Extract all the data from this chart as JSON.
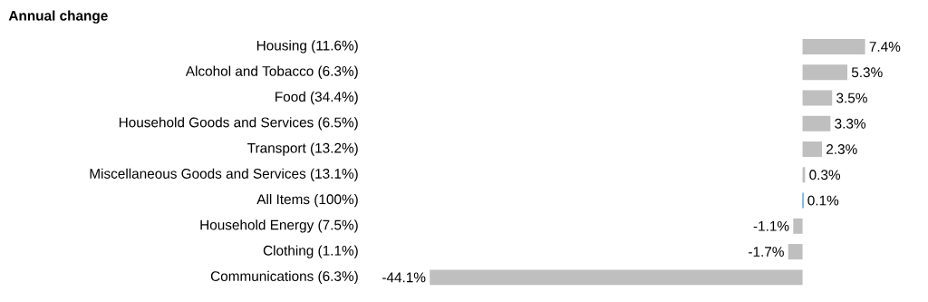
{
  "chart_data": {
    "type": "bar",
    "orientation": "horizontal",
    "title": "Annual change",
    "categories": [
      "Housing (11.6%)",
      "Alcohol and Tobacco (6.3%)",
      "Food (34.4%)",
      "Household Goods and Services (6.5%)",
      "Transport (13.2%)",
      "Miscellaneous Goods and Services (13.1%)",
      "All Items (100%)",
      "Household Energy (7.5%)",
      "Clothing (1.1%)",
      "Communications (6.3%)"
    ],
    "values": [
      7.4,
      5.3,
      3.5,
      3.3,
      2.3,
      0.3,
      0.1,
      -1.1,
      -1.7,
      -44.1
    ],
    "value_labels": [
      "7.4%",
      "5.3%",
      "3.5%",
      "3.3%",
      "2.3%",
      "0.3%",
      "0.1%",
      "-1.1%",
      "-1.7%",
      "-44.1%"
    ],
    "colors": [
      "#bfbfbf",
      "#bfbfbf",
      "#bfbfbf",
      "#bfbfbf",
      "#bfbfbf",
      "#bfbfbf",
      "#0070c0",
      "#bfbfbf",
      "#bfbfbf",
      "#bfbfbf"
    ]
  }
}
